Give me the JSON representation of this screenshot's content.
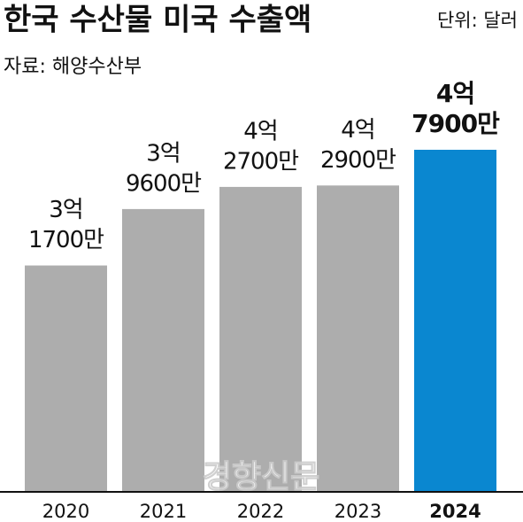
{
  "chart_data": {
    "type": "bar",
    "title": "한국 수산물 미국 수출액",
    "unit": "단위: 달러",
    "source": "자료: 해양수산부",
    "watermark": "경향신문",
    "categories": [
      "2020",
      "2021",
      "2022",
      "2023",
      "2024"
    ],
    "values": [
      317000000,
      396000000,
      427000000,
      429000000,
      479000000
    ],
    "value_labels": [
      [
        "3억",
        "1700만"
      ],
      [
        "3억",
        "9600만"
      ],
      [
        "4억",
        "2700만"
      ],
      [
        "4억",
        "2900만"
      ],
      [
        "4억",
        "7900만"
      ]
    ],
    "colors": [
      "#adadad",
      "#adadad",
      "#adadad",
      "#adadad",
      "#0a87d0"
    ],
    "highlight": "2024"
  }
}
